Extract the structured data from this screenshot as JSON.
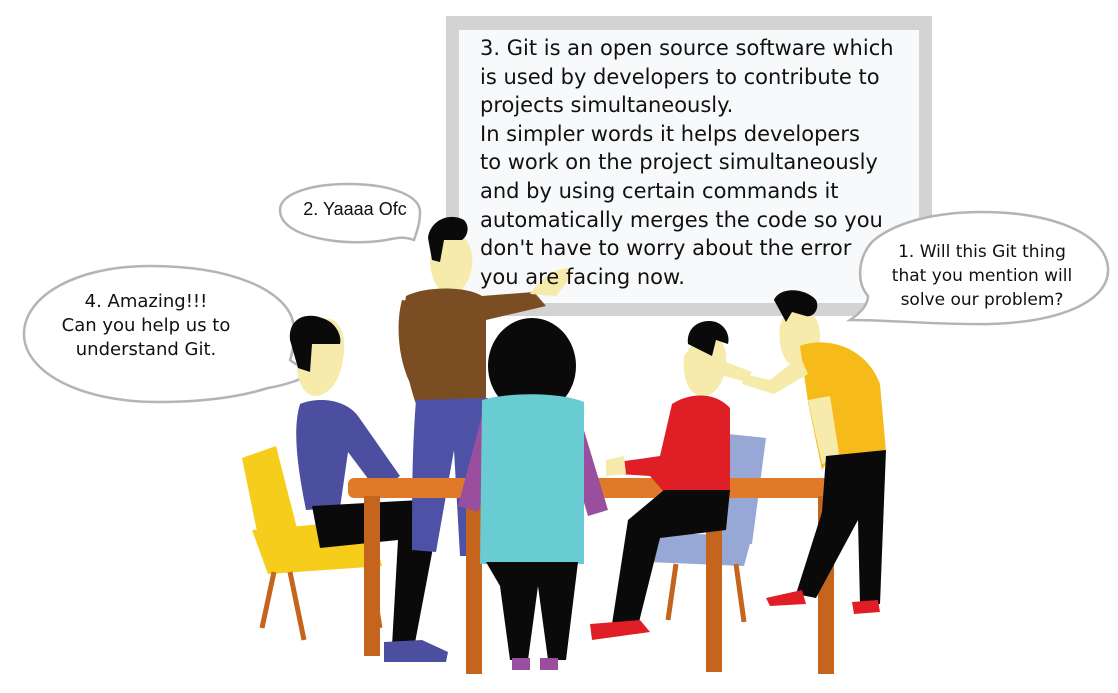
{
  "board": {
    "text": "3. Git is an open source software which\nis used by developers to contribute to\nprojects simultaneously.\n In simpler words it helps developers\nto work on the project simultaneously\nand by using certain commands it\nautomatically merges the code so you\ndon't have to worry about the error\nyou are facing now."
  },
  "bubbles": {
    "one": "1. Will this Git thing\nthat you mention will\nsolve our problem?",
    "two": "2. Yaaaa Ofc",
    "four": "4. Amazing!!!\nCan you help us to\nunderstand Git."
  },
  "colors": {
    "board_frame": "#d3d3d3",
    "board_fill": "#f7f9fb",
    "table": "#c5641d",
    "table_top": "#e07a2a",
    "chair_left": "#f5cd1a",
    "chair_right": "#97a8d6",
    "skin": "#f6ebaa",
    "hair": "#0a0a0a",
    "shirt_left": "#4c4fa0",
    "shirt_standing": "#7a4e22",
    "pants_standing": "#4d52a6",
    "top_center": "#69ccd3",
    "sleeve_center": "#9a4e9e",
    "shirt_red": "#e01e26",
    "shirt_yellow": "#f6bb1a",
    "shoes_red": "#e01e26",
    "shoes_blue": "#4c4fa0",
    "shoes_purple": "#9a4e9e"
  }
}
